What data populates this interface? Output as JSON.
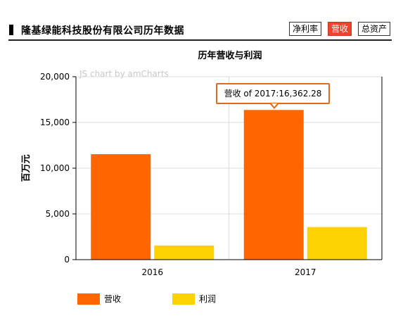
{
  "header": {
    "title": "隆基绿能科技股份有限公司历年数据",
    "tabs": [
      {
        "label": "净利率",
        "active": false
      },
      {
        "label": "营收",
        "active": true
      },
      {
        "label": "总资产",
        "active": false
      }
    ]
  },
  "watermark": "JS chart by amCharts",
  "tooltip": {
    "text": "营收 of 2017:16,362.28"
  },
  "colors": {
    "revenue": "#ff6600",
    "profit": "#fcd202",
    "grid": "#dddddd",
    "axis": "#000000",
    "tab_active": "#e8462e"
  },
  "chart_data": {
    "type": "bar",
    "title": "历年营收与利润",
    "xlabel": "",
    "ylabel": "百万元",
    "categories": [
      "2016",
      "2017"
    ],
    "ylim": [
      0,
      20000
    ],
    "yticks": [
      0,
      5000,
      10000,
      15000,
      20000
    ],
    "ytick_labels": [
      "0",
      "5,000",
      "10,000",
      "15,000",
      "20,000"
    ],
    "series": [
      {
        "name": "营收",
        "values": [
          11531,
          16362.28
        ]
      },
      {
        "name": "利润",
        "values": [
          1547,
          3565
        ]
      }
    ],
    "grid": true,
    "legend_position": "bottom-left"
  }
}
